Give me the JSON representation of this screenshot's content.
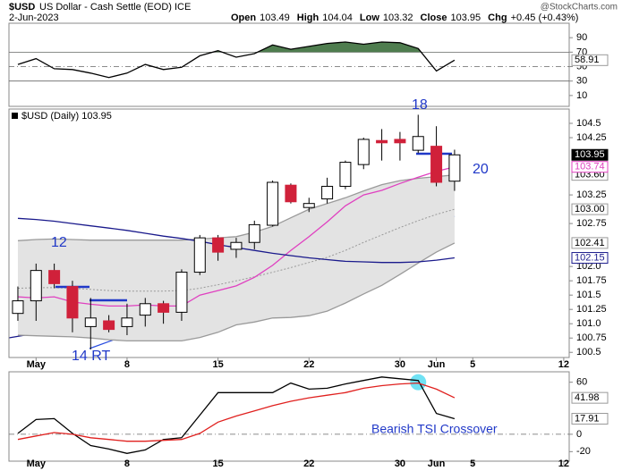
{
  "header": {
    "symbol": "$USD",
    "name": "US Dollar - Cash Settle (EOD) ICE",
    "date": "2-Jun-2023",
    "source": "@StockCharts.com",
    "stats": [
      {
        "label": "Open",
        "value": "103.49"
      },
      {
        "label": "High",
        "value": "104.04"
      },
      {
        "label": "Low",
        "value": "103.32"
      },
      {
        "label": "Close",
        "value": "103.95"
      },
      {
        "label": "Chg",
        "value": "+0.45 (+0.43%)"
      }
    ]
  },
  "chart_data": [
    {
      "type": "line",
      "ylim": [
        -5,
        110
      ],
      "xlim": [
        -0.49,
        30.3
      ],
      "yticks": [
        90,
        70,
        50,
        30,
        10
      ],
      "reference_lines": [
        70,
        50,
        30
      ],
      "fill_above": 70,
      "fill_color": "#4f7d4f",
      "series": [
        {
          "color": "#000000",
          "last_label": "58.91",
          "values": [
            53,
            61,
            47,
            46,
            41,
            35,
            41,
            53,
            46,
            49,
            65,
            72,
            63,
            68,
            80,
            74,
            78,
            82,
            84,
            81,
            84,
            83,
            75,
            44,
            58.91
          ]
        }
      ]
    },
    {
      "type": "candlestick",
      "title": "$USD (Daily) 103.95",
      "ylim": [
        100.41,
        104.75
      ],
      "xlim": [
        -0.49,
        30.3
      ],
      "yticks": [
        104.5,
        104.25,
        103.25,
        102.75,
        {
          "value": 102,
          "label": "102.0"
        },
        101.75,
        101.5,
        101.25,
        {
          "value": 101,
          "label": "101.0"
        },
        100.75,
        100.5
      ],
      "xticks": [
        {
          "value": 1,
          "label": "May"
        },
        {
          "value": 6,
          "label": "8"
        },
        {
          "value": 11,
          "label": "15"
        },
        {
          "value": 16,
          "label": "22"
        },
        {
          "value": 21,
          "label": "30"
        },
        {
          "value": 23,
          "label": "Jun"
        },
        {
          "value": 25,
          "label": "5"
        },
        {
          "value": 30,
          "label": "12"
        }
      ],
      "open": [
        101.18,
        101.4,
        101.93,
        101.65,
        100.95,
        101.05,
        100.95,
        101.15,
        101.35,
        101.2,
        101.9,
        102.5,
        102.3,
        102.42,
        102.72,
        103.42,
        103.03,
        103.18,
        103.4,
        103.78,
        104.2,
        104.22,
        104.03,
        104.1,
        103.49
      ],
      "high": [
        101.65,
        102.05,
        102.05,
        101.75,
        101.45,
        101.15,
        101.35,
        101.45,
        101.4,
        101.95,
        102.55,
        102.55,
        102.5,
        102.8,
        103.5,
        103.45,
        103.2,
        103.55,
        103.85,
        104.25,
        104.4,
        104.35,
        104.65,
        104.45,
        104.04
      ],
      "low": [
        101.05,
        101.05,
        101.62,
        100.85,
        100.55,
        100.85,
        100.8,
        100.95,
        101.0,
        101.05,
        101.85,
        102.1,
        102.15,
        102.3,
        102.7,
        103.1,
        102.95,
        103.1,
        103.35,
        103.7,
        103.85,
        103.85,
        103.98,
        103.4,
        103.32
      ],
      "close": [
        101.4,
        101.93,
        101.7,
        101.1,
        101.1,
        100.9,
        101.1,
        101.35,
        101.2,
        101.9,
        102.5,
        102.25,
        102.42,
        102.73,
        103.47,
        103.13,
        103.1,
        103.4,
        103.82,
        104.22,
        104.16,
        104.16,
        104.27,
        103.47,
        103.95
      ],
      "up_color": "#ffffff",
      "down_color": "#d0213a",
      "close_label": "103.95",
      "band_fill": "#e3e3e3",
      "overlays": [
        {
          "color": "#9a9a9a",
          "last_label": "103.60",
          "values": [
            102.45,
            102.47,
            102.48,
            102.47,
            102.46,
            102.46,
            102.46,
            102.46,
            102.46,
            102.46,
            102.48,
            102.5,
            102.52,
            102.6,
            102.7,
            102.85,
            103.0,
            103.1,
            103.2,
            103.32,
            103.43,
            103.5,
            103.54,
            103.57,
            103.6
          ]
        },
        {
          "color": "#9a9a9a",
          "dashed": true,
          "last_label": "103.00",
          "values": [
            101.62,
            101.63,
            101.63,
            101.62,
            101.6,
            101.58,
            101.57,
            101.57,
            101.57,
            101.58,
            101.62,
            101.68,
            101.75,
            101.82,
            101.9,
            101.98,
            102.07,
            102.16,
            102.28,
            102.42,
            102.55,
            102.68,
            102.8,
            102.91,
            103.0
          ]
        },
        {
          "color": "#9a9a9a",
          "last_label": "102.41",
          "values": [
            100.8,
            100.79,
            100.78,
            100.77,
            100.75,
            100.72,
            100.7,
            100.7,
            100.7,
            100.7,
            100.76,
            100.85,
            100.98,
            101.03,
            101.1,
            101.11,
            101.14,
            101.22,
            101.36,
            101.52,
            101.67,
            101.86,
            102.06,
            102.25,
            102.41
          ]
        },
        {
          "color": "#e040c0",
          "last_label": "103.74",
          "values": [
            101.47,
            101.45,
            101.47,
            101.38,
            101.34,
            101.31,
            101.31,
            101.33,
            101.31,
            101.31,
            101.5,
            101.58,
            101.66,
            101.81,
            102.02,
            102.28,
            102.52,
            102.78,
            103.06,
            103.25,
            103.33,
            103.45,
            103.56,
            103.66,
            103.74
          ]
        },
        {
          "color": "#1a1a8c",
          "last_label": "102.15",
          "values": [
            102.84,
            102.82,
            102.79,
            102.75,
            102.71,
            102.67,
            102.63,
            102.58,
            102.53,
            102.49,
            102.44,
            102.38,
            102.33,
            102.28,
            102.23,
            102.19,
            102.15,
            102.12,
            102.09,
            102.08,
            102.07,
            102.07,
            102.08,
            102.11,
            102.15
          ]
        }
      ],
      "annotations": [
        "12",
        "14 RT",
        "18",
        "20"
      ]
    },
    {
      "type": "line",
      "ylim": [
        -31,
        72
      ],
      "xlim": [
        -0.49,
        30.3
      ],
      "yticks": [
        60,
        0,
        -20
      ],
      "reference_lines": [
        0
      ],
      "xticks": [
        {
          "value": 1,
          "label": "May"
        },
        {
          "value": 6,
          "label": "8"
        },
        {
          "value": 11,
          "label": "15"
        },
        {
          "value": 16,
          "label": "22"
        },
        {
          "value": 21,
          "label": "30"
        },
        {
          "value": 23,
          "label": "Jun"
        },
        {
          "value": 25,
          "label": "5"
        },
        {
          "value": 30,
          "label": "12"
        }
      ],
      "series": [
        {
          "color": "#000000",
          "last_label": "17.91",
          "values": [
            1,
            17,
            18,
            1,
            -13,
            -17,
            -22,
            -18,
            -6,
            -4,
            22,
            48,
            48,
            48,
            48,
            59,
            52,
            53,
            58,
            62,
            66,
            64,
            62,
            24,
            17.91
          ]
        },
        {
          "color": "#e0201e",
          "last_label": "41.98",
          "values": [
            -6,
            -2,
            2,
            0,
            -4,
            -6,
            -8,
            -8,
            -7,
            -6,
            1,
            14,
            21,
            27,
            33,
            38,
            42,
            45,
            48,
            53,
            56,
            58,
            59,
            52,
            41.98
          ]
        }
      ],
      "annotations": [
        "Bearish TSI Crossover"
      ]
    }
  ]
}
